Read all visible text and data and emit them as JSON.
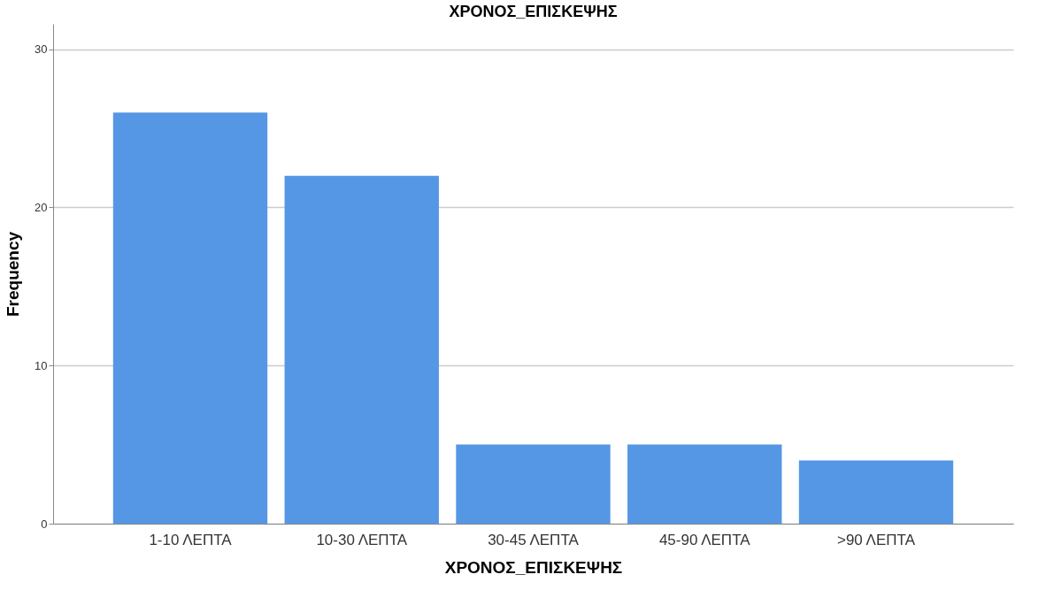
{
  "chart_data": {
    "type": "bar",
    "title": "ΧΡΟΝΟΣ_ΕΠΙΣΚΕΨΗΣ",
    "xlabel": "ΧΡΟΝΟΣ_ΕΠΙΣΚΕΨΗΣ",
    "ylabel": "Frequency",
    "categories": [
      "1-10 ΛΕΠΤΑ",
      "10-30 ΛΕΠΤΑ",
      "30-45 ΛΕΠΤΑ",
      "45-90 ΛΕΠΤΑ",
      ">90 ΛΕΠΤΑ"
    ],
    "values": [
      26,
      22,
      5,
      5,
      4
    ],
    "color": "#5597e4",
    "ylim": [
      0,
      31.6
    ],
    "yticks": [
      0,
      10,
      20,
      30
    ],
    "grid": "y"
  }
}
